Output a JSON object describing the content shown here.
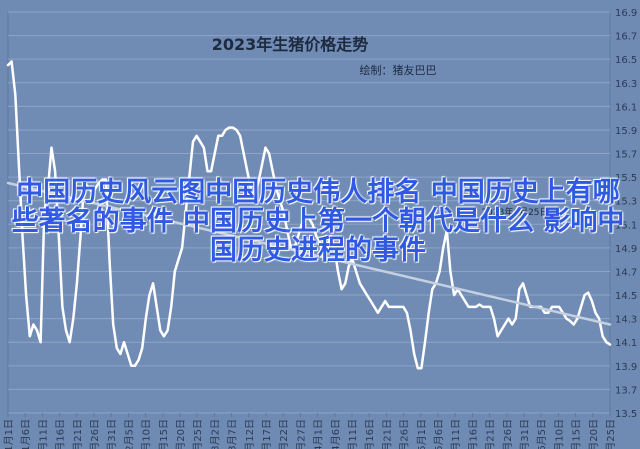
{
  "chart_data": {
    "type": "line",
    "title": "2023年生猪价格走势",
    "subtitle": "绘制：猪友巴巴",
    "annotation": "2023年6月25日",
    "overlay_text": "中国历史风云图中国历史伟人排名 中国历史上有哪些著名的事件 中国历史上第一个朝代是什么 影响中国历史进程的事件",
    "yticks": [
      16.9,
      16.7,
      16.5,
      16.3,
      16.1,
      15.9,
      15.7,
      15.5,
      15.3,
      15.1,
      14.9,
      14.7,
      14.5,
      14.3,
      14.1,
      13.9,
      13.7,
      13.5
    ],
    "ylim": [
      13.5,
      16.9
    ],
    "xticks": [
      "1月1日",
      "1月6日",
      "1月11日",
      "1月16日",
      "1月21日",
      "1月26日",
      "1月31日",
      "2月5日",
      "2月10日",
      "2月15日",
      "2月20日",
      "2月25日",
      "3月2日",
      "3月7日",
      "3月12日",
      "3月17日",
      "3月22日",
      "3月27日",
      "4月1日",
      "4月6日",
      "4月11日",
      "4月16日",
      "4月21日",
      "4月26日",
      "5月1日",
      "5月6日",
      "5月11日",
      "5月16日",
      "5月21日",
      "5月26日",
      "5月31日",
      "6月5日",
      "6月10日",
      "6月15日",
      "6月20日",
      "6月25日"
    ],
    "series": [
      {
        "name": "",
        "color": "#ffffff",
        "values": [
          16.45,
          16.48,
          16.2,
          15.6,
          15.0,
          14.5,
          14.15,
          14.25,
          14.2,
          14.1,
          15.2,
          15.4,
          15.75,
          15.55,
          15.0,
          14.4,
          14.2,
          14.1,
          14.3,
          14.6,
          15.0,
          15.45,
          15.42,
          15.38,
          15.4,
          15.45,
          15.48,
          15.48,
          14.8,
          14.25,
          14.05,
          14.0,
          14.1,
          14.0,
          13.9,
          13.9,
          13.95,
          14.05,
          14.3,
          14.5,
          14.6,
          14.4,
          14.2,
          14.15,
          14.2,
          14.4,
          14.7,
          14.8,
          14.9,
          15.2,
          15.5,
          15.8,
          15.85,
          15.8,
          15.75,
          15.55,
          15.55,
          15.7,
          15.85,
          15.85,
          15.9,
          15.92,
          15.92,
          15.9,
          15.85,
          15.7,
          15.55,
          15.4,
          15.35,
          15.45,
          15.6,
          15.75,
          15.7,
          15.55,
          15.4,
          15.3,
          15.2,
          15.05,
          14.9,
          14.9,
          15.0,
          15.1,
          15.15,
          15.15,
          15.1,
          15.0,
          14.95,
          14.85,
          14.9,
          15.0,
          14.9,
          14.7,
          14.55,
          14.6,
          14.75,
          14.8,
          14.7,
          14.6,
          14.55,
          14.5,
          14.45,
          14.4,
          14.35,
          14.4,
          14.45,
          14.4,
          14.4,
          14.4,
          14.4,
          14.4,
          14.35,
          14.2,
          14.0,
          13.88,
          13.88,
          14.1,
          14.35,
          14.55,
          14.6,
          14.7,
          14.9,
          15.05,
          14.7,
          14.5,
          14.55,
          14.5,
          14.45,
          14.4,
          14.4,
          14.4,
          14.42,
          14.4,
          14.4,
          14.4,
          14.3,
          14.15,
          14.2,
          14.25,
          14.3,
          14.25,
          14.3,
          14.55,
          14.6,
          14.5,
          14.4,
          14.4,
          14.4,
          14.4,
          14.35,
          14.35,
          14.4,
          14.4,
          14.4,
          14.35,
          14.3,
          14.28,
          14.25,
          14.3,
          14.4,
          14.5,
          14.52,
          14.45,
          14.35,
          14.3,
          14.15,
          14.1,
          14.08
        ]
      },
      {
        "name": "",
        "color": "#c4cfe0",
        "values": [
          15.45,
          14.25
        ]
      }
    ],
    "grid": true,
    "legend": "none"
  }
}
